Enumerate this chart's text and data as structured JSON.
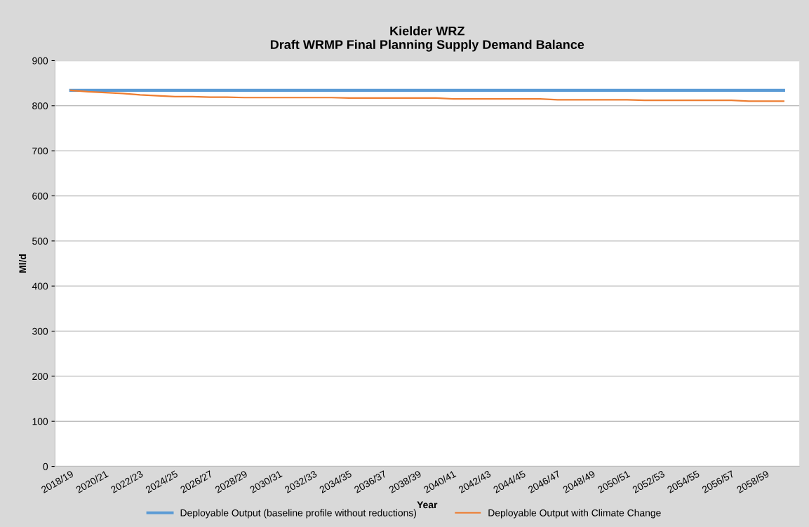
{
  "chart_data": {
    "type": "line",
    "title": "Kielder WRZ\nDraft WRMP Final Planning Supply Demand Balance",
    "xlabel": "Year",
    "ylabel": "Ml/d",
    "categories": [
      "2018/19",
      null,
      "2020/21",
      null,
      "2022/23",
      null,
      "2024/25",
      null,
      "2026/27",
      null,
      "2028/29",
      null,
      "2030/31",
      null,
      "2032/33",
      null,
      "2034/35",
      null,
      "2036/37",
      null,
      "2038/39",
      null,
      "2040/41",
      null,
      "2042/43",
      null,
      "2044/45",
      null,
      "2046/47",
      null,
      "2048/49",
      null,
      "2050/51",
      null,
      "2052/53",
      null,
      "2054/55",
      null,
      "2056/57",
      null,
      "2058/59",
      null
    ],
    "series": [
      {
        "name": "Deployable Output (baseline profile without reductions)",
        "color": "#5b9bd5",
        "values": [
          834,
          834,
          834,
          834,
          834,
          834,
          834,
          834,
          834,
          834,
          834,
          834,
          834,
          834,
          834,
          834,
          834,
          834,
          834,
          834,
          834,
          834,
          834,
          834,
          834,
          834,
          834,
          834,
          834,
          834,
          834,
          834,
          834,
          834,
          834,
          834,
          834,
          834,
          834,
          834,
          834,
          834
        ]
      },
      {
        "name": "Deployable Output with Climate Change",
        "color": "#ed7d31",
        "values": [
          834,
          831,
          829,
          827,
          824,
          822,
          820,
          820,
          819,
          819,
          818,
          818,
          818,
          818,
          818,
          818,
          817,
          817,
          817,
          817,
          817,
          817,
          815,
          815,
          815,
          815,
          815,
          815,
          813,
          813,
          813,
          813,
          813,
          812,
          812,
          812,
          812,
          812,
          812,
          810,
          810,
          810
        ]
      }
    ],
    "ylim": [
      0,
      900
    ],
    "yticks": [
      0,
      100,
      200,
      300,
      400,
      500,
      600,
      700,
      800,
      900
    ],
    "grid": "y",
    "legend": "bottom",
    "marker": "none",
    "line_style": "solid"
  }
}
